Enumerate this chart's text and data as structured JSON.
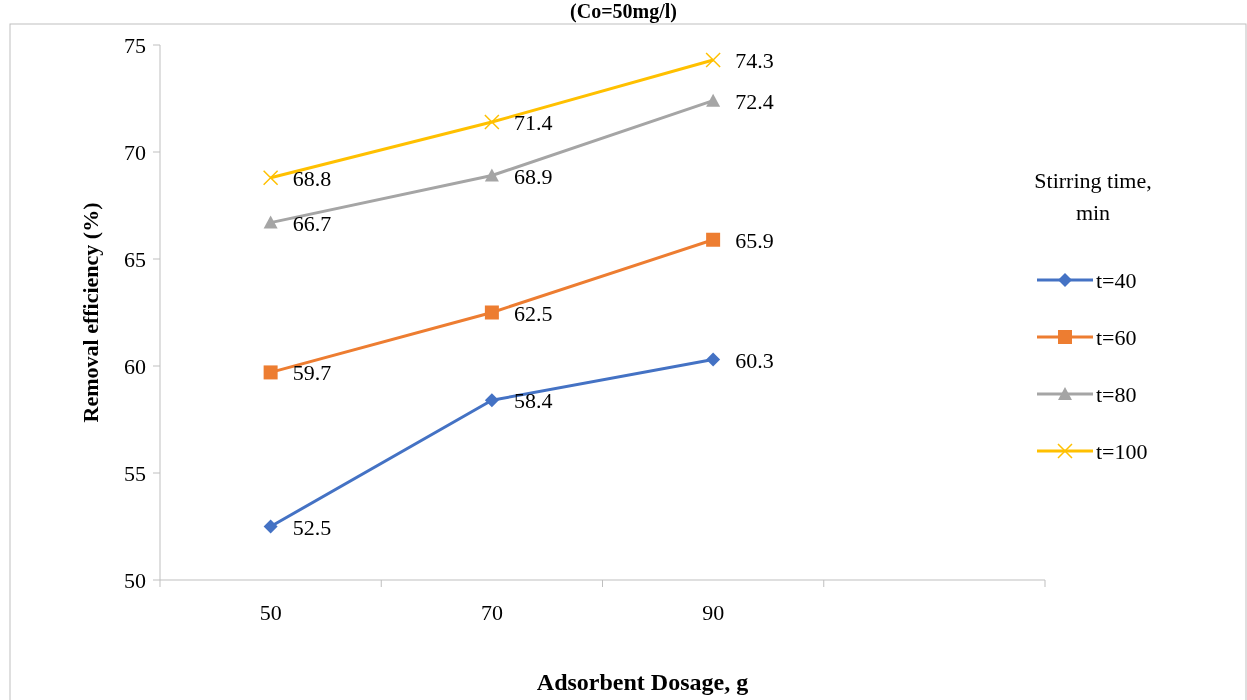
{
  "chart_data": {
    "type": "line",
    "title": "(Co=50mg/l)",
    "xlabel": "Adsorbent Dosage, g",
    "ylabel": "Removal efficiency (%)",
    "legend_title": "Stirring time, min",
    "categories": [
      "50",
      "70",
      "90",
      null
    ],
    "series": [
      {
        "name": "t=40",
        "color": "#4472c4",
        "marker": "diamond",
        "values": [
          52.5,
          58.4,
          60.3,
          null
        ]
      },
      {
        "name": "t=60",
        "color": "#ed7d31",
        "marker": "square",
        "values": [
          59.7,
          62.5,
          65.9,
          null
        ]
      },
      {
        "name": "t=80",
        "color": "#a5a5a5",
        "marker": "triangle",
        "values": [
          66.7,
          68.9,
          72.4,
          null
        ]
      },
      {
        "name": "t=100",
        "color": "#ffc000",
        "marker": "cross",
        "values": [
          68.8,
          71.4,
          74.3,
          null
        ]
      }
    ],
    "ylim": [
      50,
      75
    ],
    "yticks": [
      50,
      55,
      60,
      65,
      70,
      75
    ],
    "grid": false,
    "legend": "right",
    "data_labels": true
  }
}
